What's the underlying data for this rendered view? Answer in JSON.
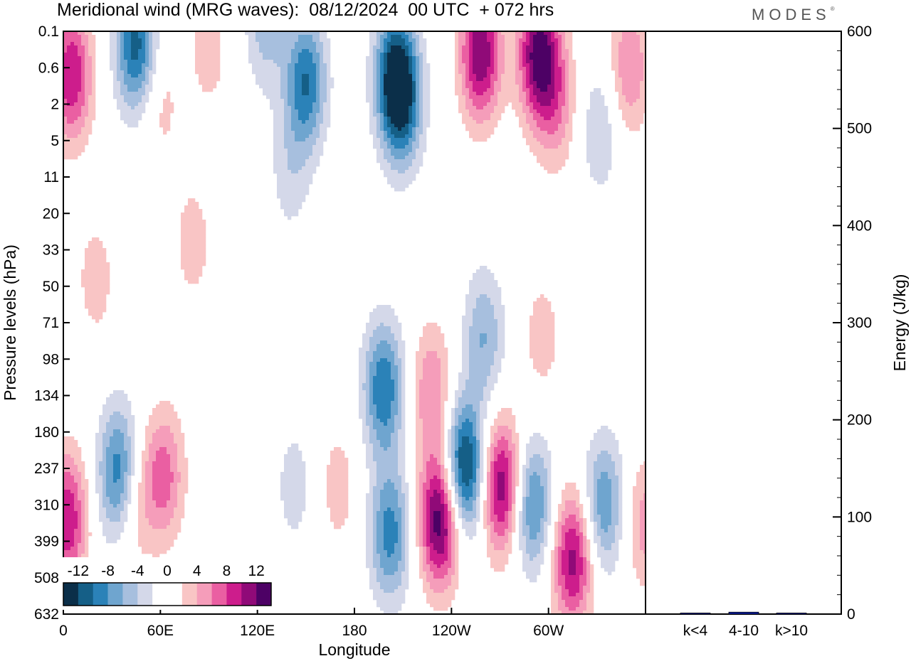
{
  "header": {
    "title": "Meridional wind (MRG waves):  08/12/2024  00 UTC  + 072 hrs",
    "brand": "MODES"
  },
  "colors": {
    "levels": [
      "#0b2f49",
      "#155f87",
      "#2b82b8",
      "#6fa5cf",
      "#a7bfde",
      "#d4d8e9",
      "#ffffff",
      "#ffffff",
      "#f9c5c5",
      "#f59dba",
      "#ea5fa2",
      "#cd1d8c",
      "#900a78",
      "#4d0165"
    ],
    "bar": "#0d1fa5"
  },
  "chart_data": [
    {
      "type": "heatmap",
      "title": "Meridional wind (MRG waves):  08/12/2024  00 UTC  + 072 hrs",
      "xlabel": "Longitude",
      "ylabel": "Pressure levels (hPa)",
      "x_ticks": [
        "0",
        "60E",
        "120E",
        "180",
        "120W",
        "60W"
      ],
      "y_ticks": [
        "0.1",
        "0.6",
        "2",
        "5",
        "11",
        "20",
        "33",
        "50",
        "71",
        "98",
        "134",
        "180",
        "237",
        "310",
        "399",
        "508",
        "632"
      ],
      "colorbar_labels": [
        "-12",
        "-8",
        "-4",
        "0",
        "4",
        "8",
        "12"
      ],
      "levels": [
        -14,
        -12,
        -10,
        -8,
        -6,
        -4,
        -2,
        0,
        2,
        4,
        6,
        8,
        10,
        12,
        14
      ],
      "features": [
        {
          "lon": 5,
          "lev": 1.2,
          "value": 10
        },
        {
          "lon": 45,
          "lev": 0.4,
          "value": -11
        },
        {
          "lon": 60,
          "lev": 1.9,
          "value": 3
        },
        {
          "lon": 90,
          "lev": 0.5,
          "value": 3
        },
        {
          "lon": 125,
          "lev": -0.2,
          "value": -5
        },
        {
          "lon": 150,
          "lev": 1.4,
          "value": -10
        },
        {
          "lon": 140,
          "lev": 3.9,
          "value": -3
        },
        {
          "lon": 205,
          "lev": 1.2,
          "value": -11
        },
        {
          "lon": 210,
          "lev": 2.0,
          "value": -8
        },
        {
          "lon": 258,
          "lev": 0.6,
          "value": 12
        },
        {
          "lon": 294,
          "lev": 0.6,
          "value": 13
        },
        {
          "lon": 305,
          "lev": 2.0,
          "value": 5
        },
        {
          "lon": 350,
          "lev": 1.0,
          "value": 6
        },
        {
          "lon": 332,
          "lev": 2.7,
          "value": -4
        },
        {
          "lon": 80,
          "lev": 5.8,
          "value": 3
        },
        {
          "lon": 20,
          "lev": 6.8,
          "value": 3
        },
        {
          "lon": 296,
          "lev": 8.4,
          "value": 3
        },
        {
          "lon": 260,
          "lev": 8.4,
          "value": -6
        },
        {
          "lon": 35,
          "lev": 12.2,
          "value": -12
        },
        {
          "lon": 62,
          "lev": 12.2,
          "value": 7
        },
        {
          "lon": 42,
          "lev": 12.8,
          "value": 6
        },
        {
          "lon": 2,
          "lev": 13.4,
          "value": 10
        },
        {
          "lon": 198,
          "lev": 9.8,
          "value": -10
        },
        {
          "lon": 202,
          "lev": 13.8,
          "value": -9
        },
        {
          "lon": 233,
          "lev": 13.4,
          "value": 14
        },
        {
          "lon": 228,
          "lev": 9.9,
          "value": 6
        },
        {
          "lon": 248,
          "lev": 12.0,
          "value": -14
        },
        {
          "lon": 271,
          "lev": 12.5,
          "value": 12
        },
        {
          "lon": 290,
          "lev": 13.0,
          "value": -9
        },
        {
          "lon": 315,
          "lev": 14.5,
          "value": 11
        },
        {
          "lon": 334,
          "lev": 13.0,
          "value": -8
        },
        {
          "lon": 360,
          "lev": 13.5,
          "value": 5
        },
        {
          "lon": 170,
          "lev": 12.5,
          "value": 3
        },
        {
          "lon": 143,
          "lev": 12.5,
          "value": -3
        }
      ]
    },
    {
      "type": "bar",
      "categories": [
        "k<4",
        "4-10",
        "k>10"
      ],
      "values": [
        0,
        2,
        0
      ],
      "ylabel": "Energy (J/kg)",
      "ylim": [
        0,
        600
      ],
      "y_ticks": [
        "0",
        "100",
        "200",
        "300",
        "400",
        "500",
        "600"
      ]
    }
  ]
}
